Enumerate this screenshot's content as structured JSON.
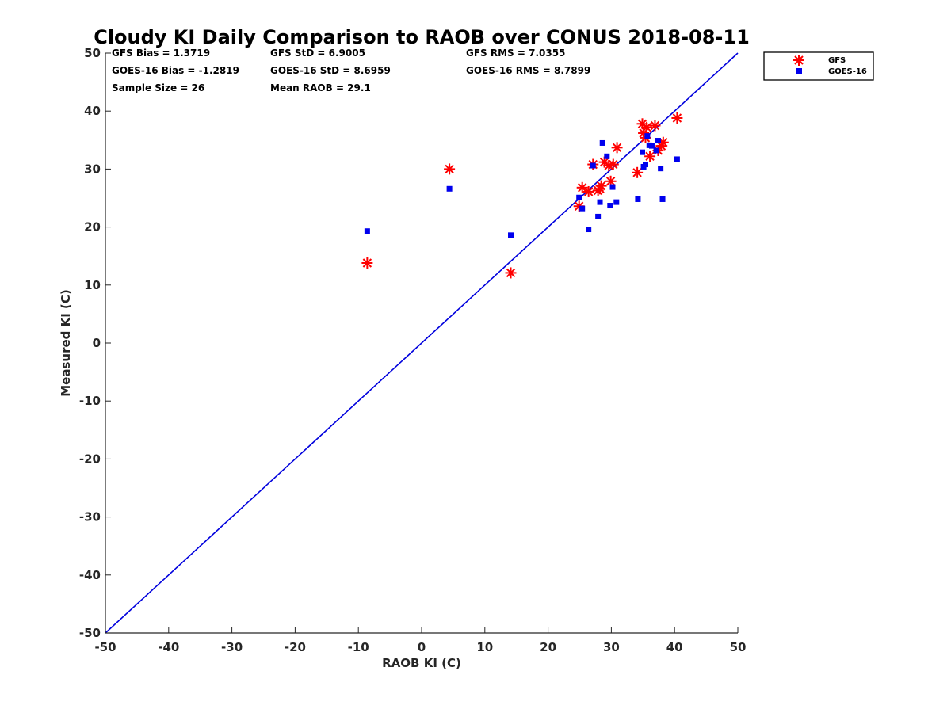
{
  "chart_data": {
    "type": "scatter",
    "title": "Cloudy KI Daily Comparison to RAOB over CONUS 2018-08-11",
    "xlabel": "RAOB KI (C)",
    "ylabel": "Measured KI (C)",
    "xlim": [
      -50,
      50
    ],
    "ylim": [
      -50,
      50
    ],
    "xticks": [
      "-50",
      "-40",
      "-30",
      "-20",
      "-10",
      "0",
      "10",
      "20",
      "30",
      "40",
      "50"
    ],
    "yticks": [
      "-50",
      "-40",
      "-30",
      "-20",
      "-10",
      "0",
      "10",
      "20",
      "30",
      "40",
      "50"
    ],
    "reference_line": {
      "name": "1:1 line",
      "x": [
        -50,
        50
      ],
      "y": [
        -50,
        50
      ],
      "color": "#0000dd"
    },
    "stats": [
      [
        "GFS Bias = 1.3719",
        "GFS StD = 6.9005",
        "GFS RMS = 7.0355"
      ],
      [
        "GOES-16 Bias = -1.2819",
        "GOES-16 StD = 8.6959",
        "GOES-16 RMS = 8.7899"
      ],
      [
        "Sample Size = 26",
        "Mean RAOB = 29.1",
        ""
      ]
    ],
    "legend_position": "top-right, outside plot",
    "series": [
      {
        "name": "GFS",
        "marker": "asterisk",
        "color": "#ff0000",
        "x": [
          -8.6,
          4.4,
          14.1,
          24.9,
          25.4,
          26.4,
          27.1,
          27.9,
          28.2,
          28.4,
          28.9,
          29.6,
          29.9,
          30.3,
          30.9,
          34.1,
          34.9,
          35.1,
          35.4,
          35.6,
          36.1,
          36.9,
          37.4,
          37.9,
          38.2,
          40.4
        ],
        "y": [
          13.8,
          30.0,
          12.1,
          23.6,
          26.8,
          26.1,
          30.8,
          26.3,
          26.6,
          27.1,
          31.2,
          30.6,
          27.9,
          30.8,
          33.7,
          29.4,
          37.8,
          36.2,
          35.4,
          37.2,
          32.2,
          37.5,
          33.2,
          34.0,
          34.6,
          38.8
        ]
      },
      {
        "name": "GOES-16",
        "marker": "square",
        "color": "#0000ee",
        "x": [
          -8.6,
          4.4,
          14.1,
          24.9,
          25.4,
          26.4,
          27.1,
          27.9,
          28.2,
          28.6,
          29.3,
          29.8,
          30.2,
          30.8,
          34.2,
          34.9,
          35.1,
          35.4,
          35.7,
          36.0,
          36.4,
          37.1,
          37.4,
          37.8,
          38.1,
          40.4
        ],
        "y": [
          19.3,
          26.6,
          18.6,
          25.1,
          23.2,
          19.6,
          30.6,
          21.8,
          24.3,
          34.5,
          32.2,
          23.7,
          26.9,
          24.3,
          24.8,
          32.9,
          30.4,
          30.8,
          35.7,
          34.1,
          34.0,
          33.2,
          34.9,
          30.1,
          24.8,
          31.7
        ]
      }
    ]
  }
}
